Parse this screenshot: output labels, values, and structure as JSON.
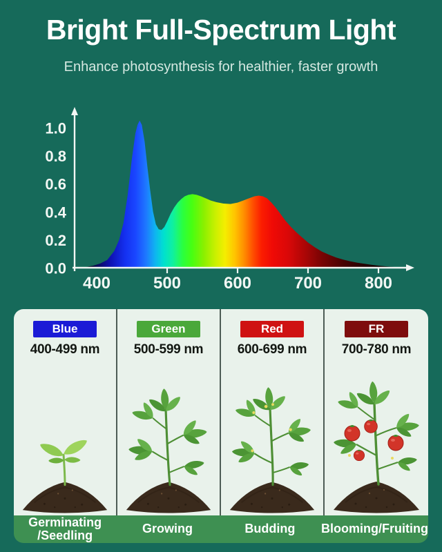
{
  "header": {
    "title": "Bright Full-Spectrum Light",
    "subtitle": "Enhance photosynthesis for healthier, faster growth"
  },
  "colors": {
    "background": "#166a5a",
    "panel_bg": "#e9f2eb",
    "divider": "#4d5c55",
    "label_bar_bg": "#3e9052",
    "axis": "#f2f7f4",
    "title_text": "#ffffff",
    "subtitle_text": "#d6e9e2",
    "range_text": "#131712"
  },
  "chart_data": {
    "type": "area",
    "title": "",
    "xlabel": "",
    "ylabel": "",
    "x_unit": "nm",
    "grid": false,
    "legend": false,
    "xlim": [
      385,
      830
    ],
    "ylim": [
      0,
      1.05
    ],
    "x": [
      385,
      395,
      405,
      415,
      425,
      432,
      438,
      444,
      450,
      455,
      458,
      461,
      464,
      468,
      472,
      476,
      480,
      484,
      488,
      492,
      496,
      500,
      505,
      510,
      515,
      520,
      525,
      530,
      536,
      542,
      548,
      555,
      562,
      570,
      580,
      590,
      600,
      608,
      616,
      624,
      630,
      636,
      642,
      648,
      654,
      660,
      668,
      676,
      684,
      692,
      700,
      710,
      720,
      730,
      740,
      750,
      760,
      770,
      780,
      790,
      800,
      810,
      820,
      830
    ],
    "values": [
      0.005,
      0.015,
      0.03,
      0.055,
      0.12,
      0.2,
      0.32,
      0.52,
      0.78,
      0.96,
      1.02,
      1.05,
      1.02,
      0.9,
      0.72,
      0.55,
      0.4,
      0.31,
      0.275,
      0.27,
      0.29,
      0.33,
      0.385,
      0.43,
      0.465,
      0.49,
      0.51,
      0.52,
      0.525,
      0.52,
      0.51,
      0.495,
      0.48,
      0.468,
      0.458,
      0.455,
      0.465,
      0.48,
      0.495,
      0.51,
      0.515,
      0.51,
      0.495,
      0.465,
      0.43,
      0.39,
      0.335,
      0.29,
      0.25,
      0.215,
      0.18,
      0.145,
      0.115,
      0.092,
      0.073,
      0.058,
      0.046,
      0.036,
      0.028,
      0.021,
      0.015,
      0.01,
      0.006,
      0.002
    ],
    "x_ticks": [
      {
        "value": 400,
        "label": "400",
        "mark": false
      },
      {
        "value": 500,
        "label": "500",
        "mark": true
      },
      {
        "value": 600,
        "label": "600",
        "mark": true
      },
      {
        "value": 700,
        "label": "700",
        "mark": true
      },
      {
        "value": 800,
        "label": "800",
        "mark": true
      }
    ],
    "y_ticks": [
      {
        "value": 1.0,
        "label": "1.0"
      },
      {
        "value": 0.8,
        "label": "0.8"
      },
      {
        "value": 0.6,
        "label": "0.6"
      },
      {
        "value": 0.4,
        "label": "0.4"
      },
      {
        "value": 0.2,
        "label": "0.2"
      },
      {
        "value": 0.0,
        "label": "0.0"
      }
    ],
    "spectrum_gradient": [
      {
        "nm": 385,
        "color": "#05050e"
      },
      {
        "nm": 400,
        "color": "#0a0a55"
      },
      {
        "nm": 420,
        "color": "#0e12b4"
      },
      {
        "nm": 440,
        "color": "#1430f0"
      },
      {
        "nm": 455,
        "color": "#1a46ff"
      },
      {
        "nm": 470,
        "color": "#1e78ff"
      },
      {
        "nm": 483,
        "color": "#0fb4f0"
      },
      {
        "nm": 495,
        "color": "#00e0d0"
      },
      {
        "nm": 508,
        "color": "#10f0a0"
      },
      {
        "nm": 522,
        "color": "#2aff40"
      },
      {
        "nm": 535,
        "color": "#46ff12"
      },
      {
        "nm": 552,
        "color": "#8af000"
      },
      {
        "nm": 568,
        "color": "#c8f000"
      },
      {
        "nm": 582,
        "color": "#f4ee00"
      },
      {
        "nm": 596,
        "color": "#ffc400"
      },
      {
        "nm": 610,
        "color": "#ff8a00"
      },
      {
        "nm": 622,
        "color": "#ff4e00"
      },
      {
        "nm": 634,
        "color": "#fb1d00"
      },
      {
        "nm": 650,
        "color": "#ef0a06"
      },
      {
        "nm": 672,
        "color": "#d90808"
      },
      {
        "nm": 695,
        "color": "#ad0606"
      },
      {
        "nm": 720,
        "color": "#780404"
      },
      {
        "nm": 750,
        "color": "#480202"
      },
      {
        "nm": 785,
        "color": "#1e0101"
      },
      {
        "nm": 830,
        "color": "#000000"
      }
    ]
  },
  "panel": {
    "columns": [
      {
        "badge_label": "Blue",
        "badge_color": "#1b1bd6",
        "range": "400-499 nm",
        "stage_label": "Germinating\n/Seedling",
        "plant": "seedling"
      },
      {
        "badge_label": "Green",
        "badge_color": "#4aa83a",
        "range": "500-599 nm",
        "stage_label": "Growing",
        "plant": "growing"
      },
      {
        "badge_label": "Red",
        "badge_color": "#cf1212",
        "range": "600-699 nm",
        "stage_label": "Budding",
        "plant": "budding"
      },
      {
        "badge_label": "FR",
        "badge_color": "#7e0d0d",
        "range": "700-780 nm",
        "stage_label": "Blooming/Fruiting",
        "plant": "fruiting"
      }
    ]
  }
}
